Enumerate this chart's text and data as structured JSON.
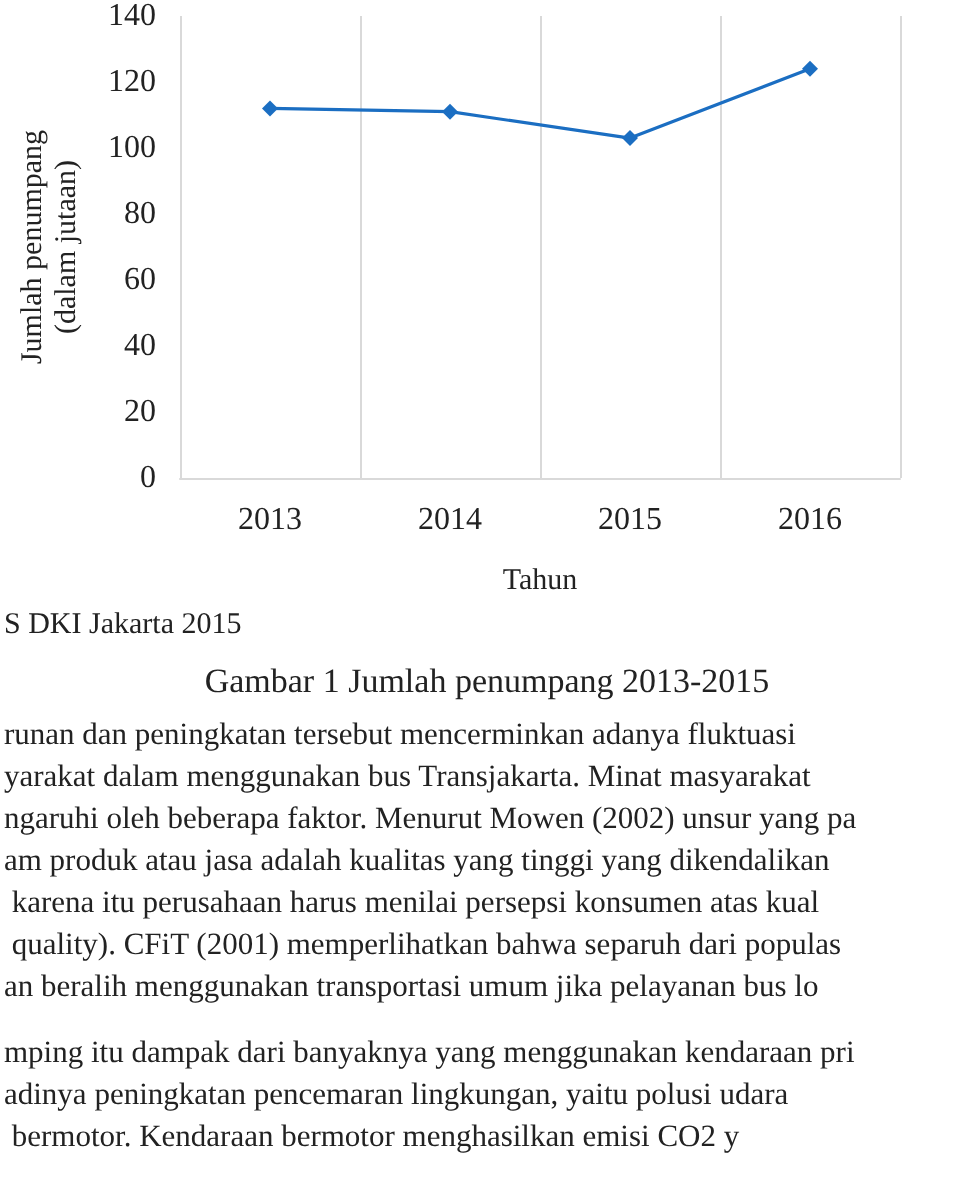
{
  "chart_data": {
    "type": "line",
    "title": "Gambar 1 Jumlah penumpang 2013-2015",
    "xlabel": "Tahun",
    "ylabel": "Jumlah penumpang\n(dalam jutaan)",
    "categories": [
      "2013",
      "2014",
      "2015",
      "2016"
    ],
    "values": [
      112,
      111,
      103,
      124
    ],
    "color": "#1b6ec2",
    "ylim": [
      0,
      140
    ],
    "yticks": [
      0,
      20,
      40,
      60,
      80,
      100,
      120,
      140
    ],
    "grid": "x",
    "marker": "diamond",
    "line_style": "solid",
    "annotations": [
      "S DKI Jakarta 2015",
      "runan dan peningkatan tersebut mencerminkan adanya fluktuasi\nyarakat dalam menggunakan bus Transjakarta. Minat masyarakat\nngaruhi oleh beberapa faktor. Menurut Mowen (2002) unsur yang pa\nam produk atau jasa adalah kualitas yang tinggi yang dikendalikan\n karena itu perusahaan harus menilai persepsi konsumen atas kual\n quality). CFiT (2001) memperlihatkan bahwa separuh dari populas\nan beralih menggunakan transportasi umum jika pelayanan bus lo",
      "mping itu dampak dari banyaknya yang menggunakan kendaraan pri\nadinya peningkatan pencemaran lingkungan, yaitu polusi udara\n bermotor. Kendaraan bermotor menghasilkan emisi CO2 y"
    ]
  }
}
